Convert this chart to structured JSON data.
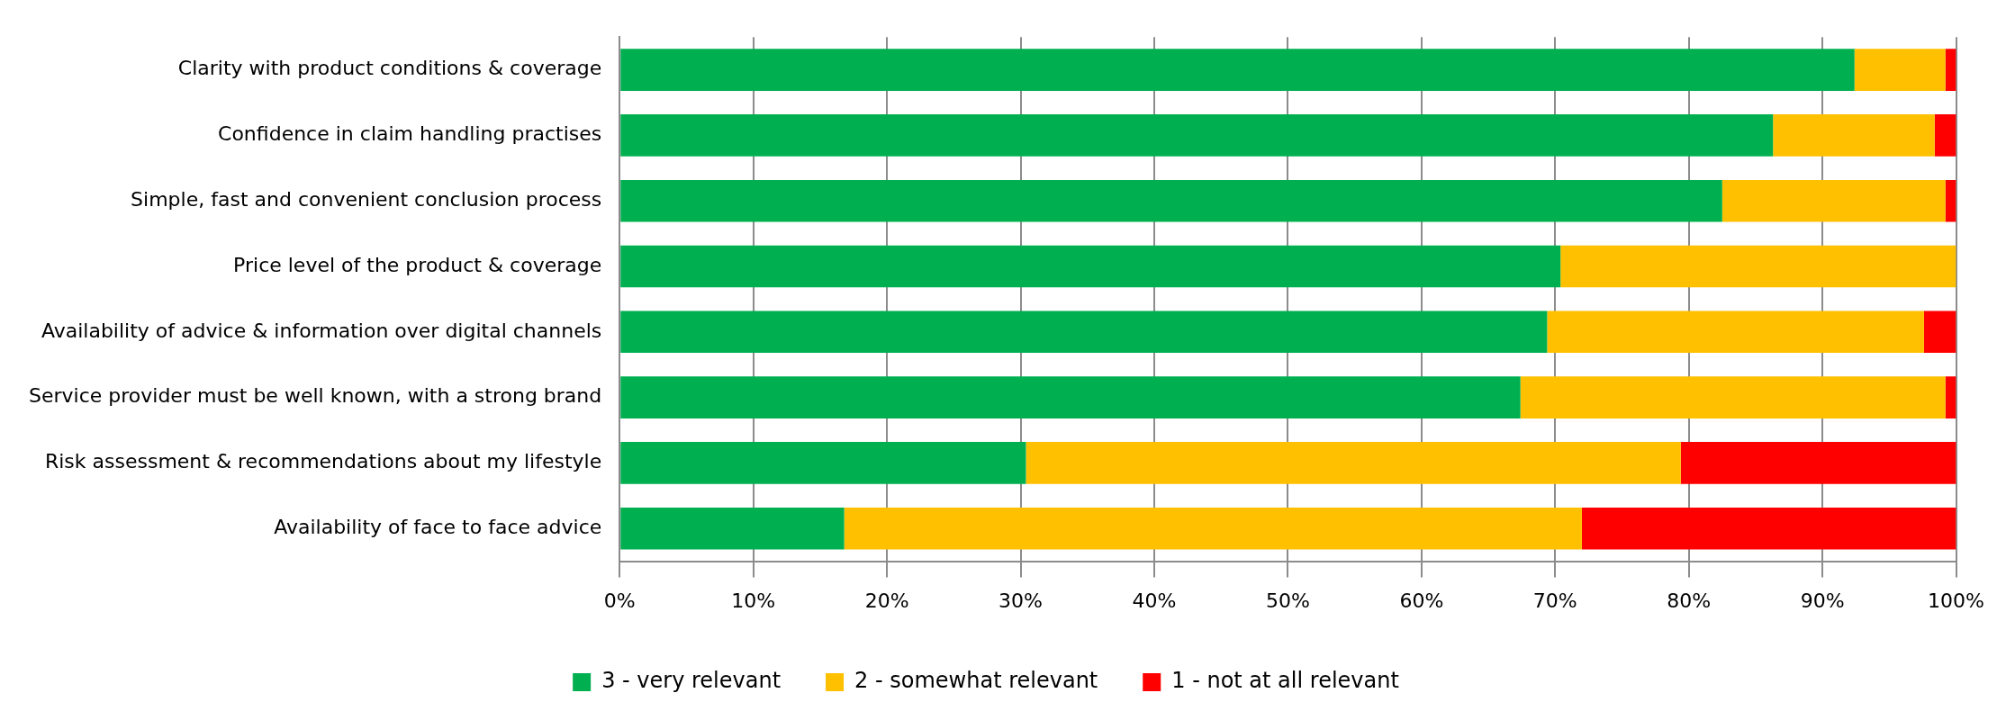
{
  "chart_data": {
    "type": "bar",
    "orientation": "horizontal",
    "stacked": true,
    "categories": [
      "Clarity with product conditions & coverage",
      "Confidence in claim handling practises",
      "Simple, fast and convenient conclusion process",
      "Price level of the product & coverage",
      "Availability of advice & information over digital channels",
      "Service provider must be well known, with a strong brand",
      "Risk assessment & recommendations about my lifestyle",
      "Availability of face to face advice"
    ],
    "series": [
      {
        "name": "3 - very relevant",
        "color": "#00b050",
        "values": [
          92.4,
          86.3,
          82.5,
          70.4,
          69.4,
          67.4,
          30.4,
          16.8
        ]
      },
      {
        "name": "2 - somewhat relevant",
        "color": "#ffc000",
        "values": [
          6.8,
          12.1,
          16.7,
          29.6,
          28.2,
          31.8,
          49.0,
          55.2
        ]
      },
      {
        "name": "1 - not at all relevant",
        "color": "#ff0000",
        "values": [
          0.8,
          1.6,
          0.8,
          0,
          2.4,
          0.8,
          20.6,
          28.0
        ]
      }
    ],
    "xlim": [
      0,
      100
    ],
    "xticks": [
      {
        "value": 0,
        "label": "0%"
      },
      {
        "value": 10,
        "label": "10%"
      },
      {
        "value": 20,
        "label": "20%"
      },
      {
        "value": 30,
        "label": "30%"
      },
      {
        "value": 40,
        "label": "40%"
      },
      {
        "value": 50,
        "label": "50%"
      },
      {
        "value": 60,
        "label": "60%"
      },
      {
        "value": 70,
        "label": "70%"
      },
      {
        "value": 80,
        "label": "80%"
      },
      {
        "value": 90,
        "label": "90%"
      },
      {
        "value": 100,
        "label": "100%"
      }
    ],
    "grid": "x",
    "legend": "bottom"
  }
}
